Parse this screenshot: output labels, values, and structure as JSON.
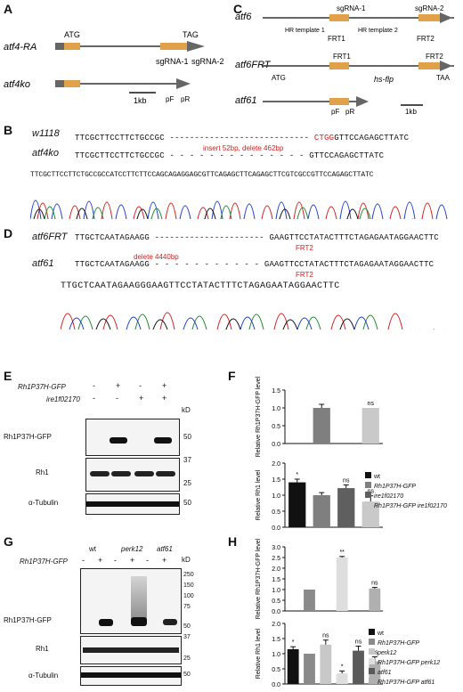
{
  "panels": {
    "A": {
      "label": "A",
      "genes": [
        "atf4-RA",
        "atf4ko"
      ],
      "atg": "ATG",
      "tag": "TAG",
      "sgrna1": "sgRNA-1",
      "sgrna2": "sgRNA-2",
      "scale": "1kb",
      "pF": "pF",
      "pR": "pR"
    },
    "B": {
      "label": "B",
      "w1118_name": "w1118",
      "atf4ko_name": "atf4ko",
      "w1118_seq_left": "TTCGCTTCCTTCTGCCGC",
      "w1118_seq_red": "CTGG",
      "w1118_seq_right": "GTTCCAGAGCTTATC",
      "atf4ko_seq_left": "TTCGCTTCCTTCTGCCGC",
      "atf4ko_seq_right": "GTTCCAGAGCTTATC",
      "mutation_note": "insert 52bp, delete 462bp",
      "trace_seq": "TTCGCTTCCTTCTGCCGCCATCCTTCTTCCAGCAGAGGAGCGTTCAGAGCTTCAGAGCTTCGTCGCCGTTCCAGAGCTTATC"
    },
    "C": {
      "label": "C",
      "genes": [
        "atf6",
        "atf6FRT",
        "atf61"
      ],
      "sgrna1": "sgRNA-1",
      "sgrna2": "sgRNA-2",
      "hr1": "HR template 1",
      "hr2": "HR template 2",
      "frt1": "FRT1",
      "frt2": "FRT2",
      "atg": "ATG",
      "taa": "TAA",
      "hsflp": "hs-flp",
      "scale": "1kb",
      "pF": "pF",
      "pR": "pR"
    },
    "D": {
      "label": "D",
      "atf6frt_name": "atf6FRT",
      "atf61_name": "atf61",
      "seq_left": "TTGCTCAATAGAAGG",
      "seq_right": "GAAGTTCCTATACTTTCTAGAGAATAGGAACTTC",
      "frt2": "FRT2",
      "deletion_note": "delete 4440bp",
      "trace_seq": "TTGCTCAATAGAAGGGAAGTTCCTATACTTTCTAGAGAATAGGAACTTC"
    },
    "E": {
      "label": "E",
      "row1_name": "Rh1P37H-GFP",
      "row2_name": "ire1f02170",
      "row1_signs": [
        "-",
        "+",
        "-",
        "+"
      ],
      "row2_signs": [
        "-",
        "-",
        "+",
        "+"
      ],
      "kd": "kD",
      "blots": [
        "Rh1P37H-GFP",
        "Rh1",
        "α-Tubulin"
      ],
      "markers": [
        "50",
        "37",
        "25",
        "50"
      ]
    },
    "F": {
      "label": "F",
      "top_ylabel": "Relative Rh1P37H-GFP level",
      "bottom_ylabel": "Relative Rh1 level",
      "legend": [
        "wt",
        "Rh1P37H-GFP",
        "ire1f02170",
        "Rh1P37H-GFP ire1f02170"
      ],
      "ns": "ns",
      "star": "*"
    },
    "G": {
      "label": "G",
      "groups": [
        "wt",
        "perk12",
        "atf61"
      ],
      "row_name": "Rh1P37H-GFP",
      "signs": [
        "-",
        "+",
        "-",
        "+",
        "-",
        "+"
      ],
      "kd": "kD",
      "blots": [
        "Rh1P37H-GFP",
        "Rh1",
        "α-Tubulin"
      ],
      "markers_top": [
        "250",
        "150",
        "100",
        "75",
        "50"
      ],
      "markers_mid": [
        "37",
        "25"
      ],
      "markers_bot": [
        "50"
      ]
    },
    "H": {
      "label": "H",
      "top_ylabel": "Relative Rh1P37H-GFP level",
      "bottom_ylabel": "Relative Rh1 level",
      "legend": [
        "wt",
        "Rh1P37H-GFP",
        "perk12",
        "Rh1P37H-GFP perk12",
        "atf61",
        "Rh1P37H-GFP atf61"
      ],
      "ns": "ns",
      "star": "*"
    }
  },
  "chart_data": [
    {
      "type": "bar",
      "panel": "F-top",
      "categories": [
        "wt",
        "Rh1P37H-GFP",
        "ire1f02170",
        "Rh1P37H-GFP ire1f02170"
      ],
      "values": [
        0.0,
        1.0,
        0.0,
        1.0
      ],
      "errors": [
        0.0,
        0.1,
        0.0,
        0.0
      ],
      "ylabel": "Relative Rh1P37H-GFP level",
      "ylim": [
        0,
        1.5
      ],
      "yticks": [
        "0.0",
        "0.5",
        "1.0",
        "1.5"
      ],
      "colors": [
        "#111111",
        "#7f7f7f",
        "#5f5f5f",
        "#c9c9c9"
      ],
      "annotations": [
        "",
        "",
        "",
        "ns"
      ]
    },
    {
      "type": "bar",
      "panel": "F-bottom",
      "categories": [
        "wt",
        "Rh1P37H-GFP",
        "ire1f02170",
        "Rh1P37H-GFP ire1f02170"
      ],
      "values": [
        1.4,
        1.0,
        1.22,
        0.8
      ],
      "errors": [
        0.1,
        0.08,
        0.1,
        0.18
      ],
      "ylabel": "Relative Rh1 level",
      "ylim": [
        0,
        2.0
      ],
      "yticks": [
        "0.0",
        "0.5",
        "1.0",
        "1.5",
        "2.0"
      ],
      "colors": [
        "#111111",
        "#7f7f7f",
        "#5f5f5f",
        "#c9c9c9"
      ],
      "annotations": [
        "*",
        "",
        "ns",
        "ns"
      ]
    },
    {
      "type": "bar",
      "panel": "H-top",
      "categories": [
        "wt",
        "Rh1P37H-GFP",
        "perk12",
        "Rh1P37H-GFP perk12",
        "atf61",
        "Rh1P37H-GFP atf61"
      ],
      "values": [
        0.0,
        1.0,
        0.0,
        2.5,
        0.0,
        1.05
      ],
      "errors": [
        0.0,
        0.0,
        0.0,
        0.05,
        0.0,
        0.05
      ],
      "ylabel": "Relative Rh1P37H-GFP level",
      "ylim": [
        0,
        3.0
      ],
      "yticks": [
        "0.0",
        "0.5",
        "1.0",
        "1.5",
        "2.0",
        "2.5",
        "3.0"
      ],
      "colors": [
        "#111111",
        "#8a8a8a",
        "#c8c8c8",
        "#dedede",
        "#5a5a5a",
        "#b0b0b0"
      ],
      "annotations": [
        "",
        "",
        "",
        "**",
        "",
        "ns"
      ]
    },
    {
      "type": "bar",
      "panel": "H-bottom",
      "categories": [
        "wt",
        "Rh1P37H-GFP",
        "perk12",
        "Rh1P37H-GFP perk12",
        "atf61",
        "Rh1P37H-GFP atf61"
      ],
      "values": [
        1.15,
        1.0,
        1.3,
        0.35,
        1.1,
        0.75
      ],
      "errors": [
        0.08,
        0.0,
        0.15,
        0.08,
        0.15,
        0.15
      ],
      "ylabel": "Relative Rh1 level",
      "ylim": [
        0,
        2.0
      ],
      "yticks": [
        "0.0",
        "0.5",
        "1.0",
        "1.5",
        "2.0"
      ],
      "colors": [
        "#111111",
        "#8a8a8a",
        "#c8c8c8",
        "#dedede",
        "#5a5a5a",
        "#b0b0b0"
      ],
      "annotations": [
        "*",
        "",
        "ns",
        "*",
        "ns",
        "ns"
      ]
    }
  ]
}
